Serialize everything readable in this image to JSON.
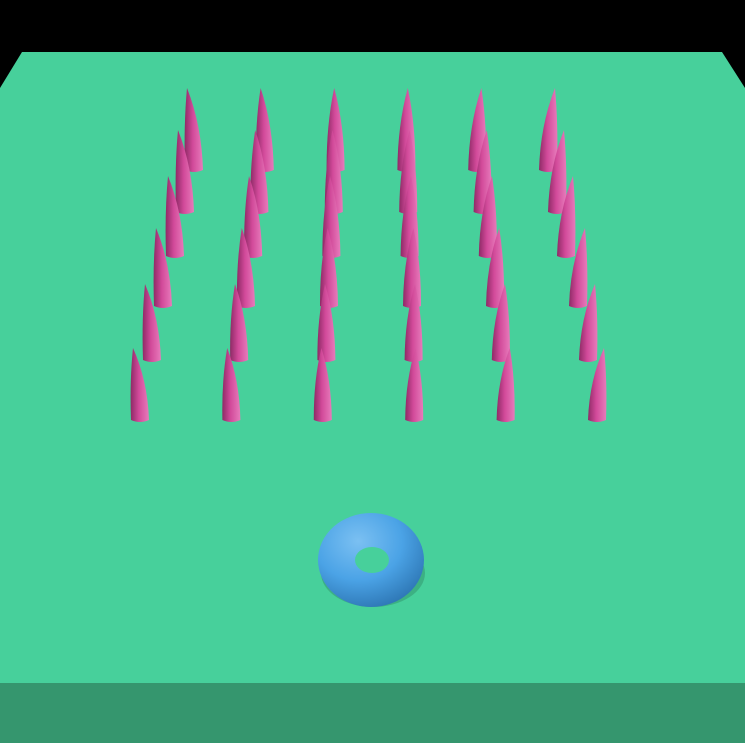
{
  "scene": {
    "background_color": "#000000",
    "platform": {
      "top_color": "#47D09B",
      "front_color": "#35966E"
    },
    "spikes": {
      "color": "#D24A9A",
      "shade_color": "#8E2A66",
      "highlight_color": "#E77BBB",
      "rows": 6,
      "columns": 6
    },
    "ring": {
      "color": "#4BA3E6",
      "shade_color": "#2D76B4",
      "highlight_color": "#7BC0F2"
    }
  }
}
